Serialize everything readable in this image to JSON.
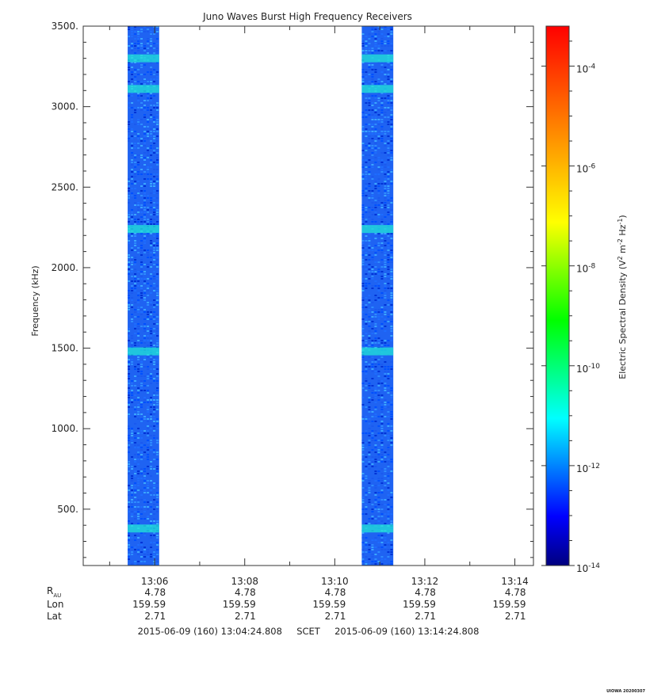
{
  "chart_data": {
    "type": "heatmap",
    "title": "Juno Waves Burst High Frequency Receivers",
    "ylabel": "Frequency (kHz)",
    "ylim": [
      150,
      3500
    ],
    "yticks": [
      {
        "value": 500,
        "label": "500."
      },
      {
        "value": 1000,
        "label": "1000."
      },
      {
        "value": 1500,
        "label": "1500."
      },
      {
        "value": 2000,
        "label": "2000."
      },
      {
        "value": 2500,
        "label": "2500."
      },
      {
        "value": 3000,
        "label": "3000."
      },
      {
        "value": 3500,
        "label": "3500."
      }
    ],
    "x_start_minutes": 784.413,
    "x_end_minutes": 794.413,
    "xticks": [
      {
        "minutes": 786,
        "label": "13:06"
      },
      {
        "minutes": 788,
        "label": "13:08"
      },
      {
        "minutes": 790,
        "label": "13:10"
      },
      {
        "minutes": 792,
        "label": "13:12"
      },
      {
        "minutes": 794,
        "label": "13:14"
      }
    ],
    "bursts": [
      {
        "start_minutes": 785.4,
        "end_minutes": 786.1
      },
      {
        "start_minutes": 790.6,
        "end_minutes": 791.3
      }
    ],
    "bright_bands_khz": [
      380,
      1480,
      2240,
      3110,
      3300
    ],
    "colorbar": {
      "label_prefix": "Electric Spectral Density (V",
      "label_sup1": "2",
      "label_mid": " m",
      "label_sup2": "-2",
      "label_mid2": " Hz",
      "label_sup3": "-1",
      "label_suffix": ")",
      "log_min": -14,
      "log_max": -3.2,
      "ticks": [
        {
          "exp": -4,
          "base": "10",
          "sup": "-4"
        },
        {
          "exp": -6,
          "base": "10",
          "sup": "-6"
        },
        {
          "exp": -8,
          "base": "10",
          "sup": "-8"
        },
        {
          "exp": -10,
          "base": "10",
          "sup": "-10"
        },
        {
          "exp": -12,
          "base": "10",
          "sup": "-12"
        },
        {
          "exp": -14,
          "base": "10",
          "sup": "-14"
        }
      ],
      "colors": [
        "#00007f",
        "#0000ff",
        "#007fff",
        "#00ffff",
        "#00ff7f",
        "#00ff00",
        "#7fff00",
        "#ffff00",
        "#ffbf00",
        "#ff7f00",
        "#ff3f00",
        "#ff0000"
      ]
    },
    "ephemeris": {
      "row_labels": [
        {
          "main": "R",
          "sub": "AU"
        },
        {
          "main": "Lon",
          "sub": ""
        },
        {
          "main": "Lat",
          "sub": ""
        }
      ],
      "rows": [
        [
          "4.78",
          "4.78",
          "4.78",
          "4.78",
          "4.78"
        ],
        [
          "159.59",
          "159.59",
          "159.59",
          "159.59",
          "159.59"
        ],
        [
          "2.71",
          "2.71",
          "2.71",
          "2.71",
          "2.71"
        ]
      ]
    },
    "time_range": {
      "start": "2015-06-09 (160) 13:04:24.808",
      "label": "SCET",
      "end": "2015-06-09 (160) 13:14:24.808"
    },
    "footer": "UIOWA 20200307"
  }
}
